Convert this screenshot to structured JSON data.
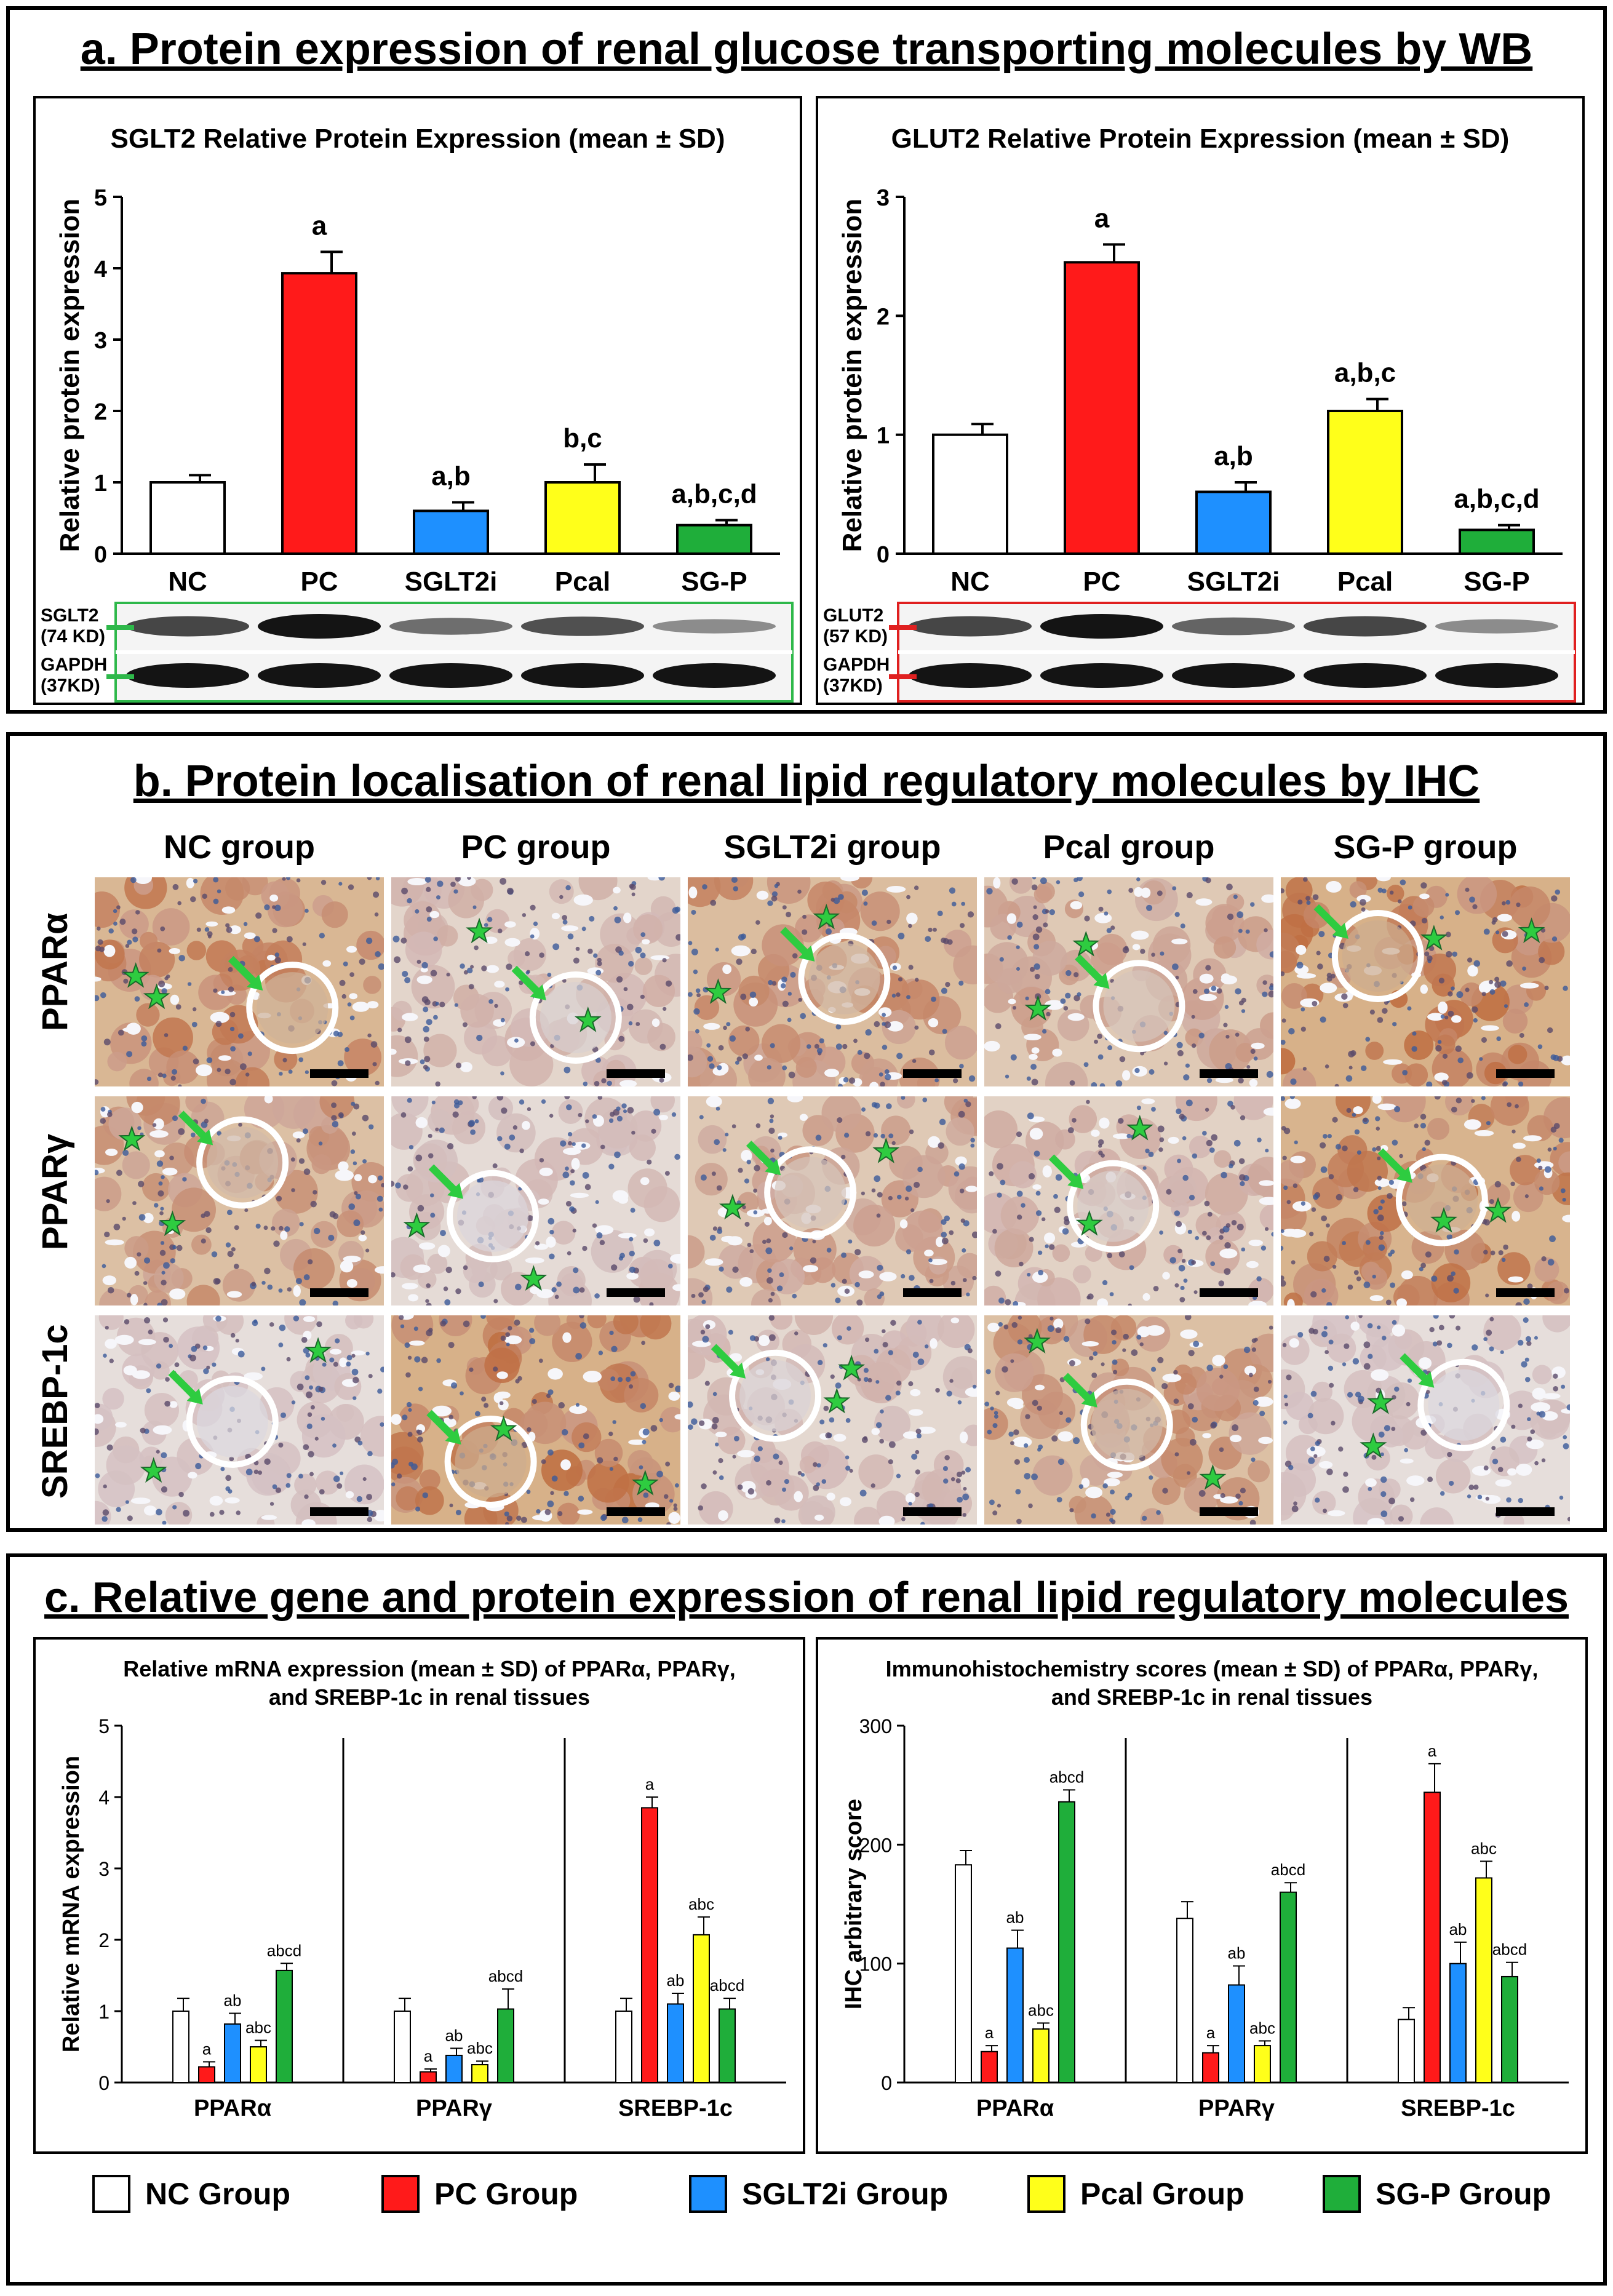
{
  "colors": {
    "NC": "#ffffff",
    "PC": "#ff1a1a",
    "SGLT2i": "#1e90ff",
    "Pcal": "#ffff1a",
    "SG-P": "#1fae3a",
    "wb_frame_sglt2": "#2eb84a",
    "wb_frame_glut2": "#e02020",
    "arrow": "#2ecc40",
    "star": "#2ecc40"
  },
  "panel_a": {
    "title": "a. Protein expression of renal glucose transporting molecules by WB",
    "charts": [
      {
        "id": "sglt2",
        "chart_data": {
          "type": "bar",
          "title": "SGLT2 Relative Protein Expression (mean ± SD)",
          "ylabel": "Relative protein expression",
          "categories": [
            "NC",
            "PC",
            "SGLT2i",
            "Pcal",
            "SG-P"
          ],
          "values": [
            1.0,
            3.93,
            0.6,
            1.0,
            0.4
          ],
          "errors": [
            0.1,
            0.3,
            0.12,
            0.25,
            0.07
          ],
          "sig_labels": [
            "",
            "a",
            "a,b",
            "b,c",
            "a,b,c,d"
          ],
          "ylim": [
            0,
            5
          ],
          "yticks": [
            "0",
            "1",
            "2",
            "3",
            "4",
            "5"
          ]
        },
        "blot": {
          "rows": [
            "SGLT2\n(74 KD)",
            "GAPDH\n(37KD)"
          ],
          "row1_label_a": "SGLT2",
          "row1_label_b": "(74 KD)",
          "row2_label_a": "GAPDH",
          "row2_label_b": "(37KD)",
          "band_intensity": [
            0.75,
            1.0,
            0.55,
            0.7,
            0.4
          ]
        }
      },
      {
        "id": "glut2",
        "chart_data": {
          "type": "bar",
          "title": "GLUT2 Relative Protein Expression (mean ± SD)",
          "ylabel": "Relative protein expression",
          "categories": [
            "NC",
            "PC",
            "SGLT2i",
            "Pcal",
            "SG-P"
          ],
          "values": [
            1.0,
            2.45,
            0.52,
            1.2,
            0.2
          ],
          "errors": [
            0.09,
            0.15,
            0.08,
            0.1,
            0.04
          ],
          "sig_labels": [
            "",
            "a",
            "a,b",
            "a,b,c",
            "a,b,c,d"
          ],
          "ylim": [
            0,
            3
          ],
          "yticks": [
            "0",
            "1",
            "2",
            "3"
          ]
        },
        "blot": {
          "row1_label_a": "GLUT2",
          "row1_label_b": "(57 KD)",
          "row2_label_a": "GAPDH",
          "row2_label_b": "(37KD)",
          "band_intensity": [
            0.75,
            1.0,
            0.6,
            0.75,
            0.4
          ]
        }
      }
    ]
  },
  "panel_b": {
    "title": "b. Protein localisation of renal lipid regulatory molecules by IHC",
    "columns": [
      "NC group",
      "PC group",
      "SGLT2i group",
      "Pcal  group",
      "SG-P  group"
    ],
    "rows": [
      "PPARα",
      "PPARγ",
      "SREBP-1c"
    ],
    "stain_intensity": [
      [
        0.75,
        0.25,
        0.65,
        0.45,
        0.85
      ],
      [
        0.6,
        0.15,
        0.45,
        0.3,
        0.8
      ],
      [
        0.1,
        0.85,
        0.2,
        0.6,
        0.1
      ]
    ]
  },
  "panel_c": {
    "title": "c. Relative gene and protein expression of renal lipid regulatory molecules",
    "charts": [
      {
        "id": "mrna",
        "chart_data": {
          "type": "bar",
          "title": "Relative mRNA expression (mean ± SD) of PPARα, PPARγ, and SREBP-1c in renal tissues",
          "title_line1": "Relative mRNA expression (mean ± SD) of PPARα, PPARγ,",
          "title_line2": "and SREBP-1c in renal tissues",
          "ylabel": "Relative mRNA expression",
          "categories": [
            "PPARα",
            "PPARγ",
            "SREBP-1c"
          ],
          "ylim": [
            0,
            5
          ],
          "yticks": [
            "0",
            "1",
            "2",
            "3",
            "4",
            "5"
          ],
          "series": [
            {
              "name": "NC Group",
              "values": [
                1.0,
                1.0,
                1.0
              ],
              "errors": [
                0.18,
                0.18,
                0.18
              ],
              "sig": [
                "",
                "",
                ""
              ]
            },
            {
              "name": "PC Group",
              "values": [
                0.22,
                0.15,
                3.85
              ],
              "errors": [
                0.07,
                0.04,
                0.15
              ],
              "sig": [
                "a",
                "a",
                "a"
              ]
            },
            {
              "name": "SGLT2i Group",
              "values": [
                0.82,
                0.38,
                1.1
              ],
              "errors": [
                0.15,
                0.1,
                0.15
              ],
              "sig": [
                "ab",
                "ab",
                "ab"
              ]
            },
            {
              "name": "Pcal Group",
              "values": [
                0.5,
                0.25,
                2.07
              ],
              "errors": [
                0.09,
                0.05,
                0.25
              ],
              "sig": [
                "abc",
                "abc",
                "abc"
              ]
            },
            {
              "name": "SG-P Group",
              "values": [
                1.57,
                1.03,
                1.03
              ],
              "errors": [
                0.1,
                0.28,
                0.15
              ],
              "sig": [
                "abcd",
                "abcd",
                "abcd"
              ]
            }
          ]
        }
      },
      {
        "id": "ihc",
        "chart_data": {
          "type": "bar",
          "title": "Immunohistochemistry scores (mean ± SD) of PPARα, PPARγ, and SREBP-1c in renal tissues",
          "title_line1": "Immunohistochemistry scores (mean ± SD) of PPARα, PPARγ,",
          "title_line2": "and SREBP-1c in renal tissues",
          "ylabel": "IHC arbitrary score",
          "categories": [
            "PPARα",
            "PPARγ",
            "SREBP-1c"
          ],
          "ylim": [
            0,
            300
          ],
          "yticks": [
            "0",
            "100",
            "200",
            "300"
          ],
          "series": [
            {
              "name": "NC Group",
              "values": [
                183,
                138,
                53
              ],
              "errors": [
                12,
                14,
                10
              ],
              "sig": [
                "",
                "",
                ""
              ]
            },
            {
              "name": "PC Group",
              "values": [
                26,
                25,
                244
              ],
              "errors": [
                5,
                6,
                24
              ],
              "sig": [
                "a",
                "a",
                "a"
              ]
            },
            {
              "name": "SGLT2i Group",
              "values": [
                113,
                82,
                100
              ],
              "errors": [
                15,
                16,
                18
              ],
              "sig": [
                "ab",
                "ab",
                "ab"
              ]
            },
            {
              "name": "Pcal Group",
              "values": [
                45,
                31,
                172
              ],
              "errors": [
                5,
                4,
                14
              ],
              "sig": [
                "abc",
                "abc",
                "abc"
              ]
            },
            {
              "name": "SG-P Group",
              "values": [
                236,
                160,
                89
              ],
              "errors": [
                10,
                8,
                12
              ],
              "sig": [
                "abcd",
                "abcd",
                "abcd"
              ]
            }
          ]
        }
      }
    ]
  },
  "legend": [
    {
      "label": "NC Group",
      "color": "#ffffff"
    },
    {
      "label": "PC Group",
      "color": "#ff1a1a"
    },
    {
      "label": "SGLT2i Group",
      "color": "#1e90ff"
    },
    {
      "label": "Pcal Group",
      "color": "#ffff1a"
    },
    {
      "label": "SG-P Group",
      "color": "#1fae3a"
    }
  ]
}
